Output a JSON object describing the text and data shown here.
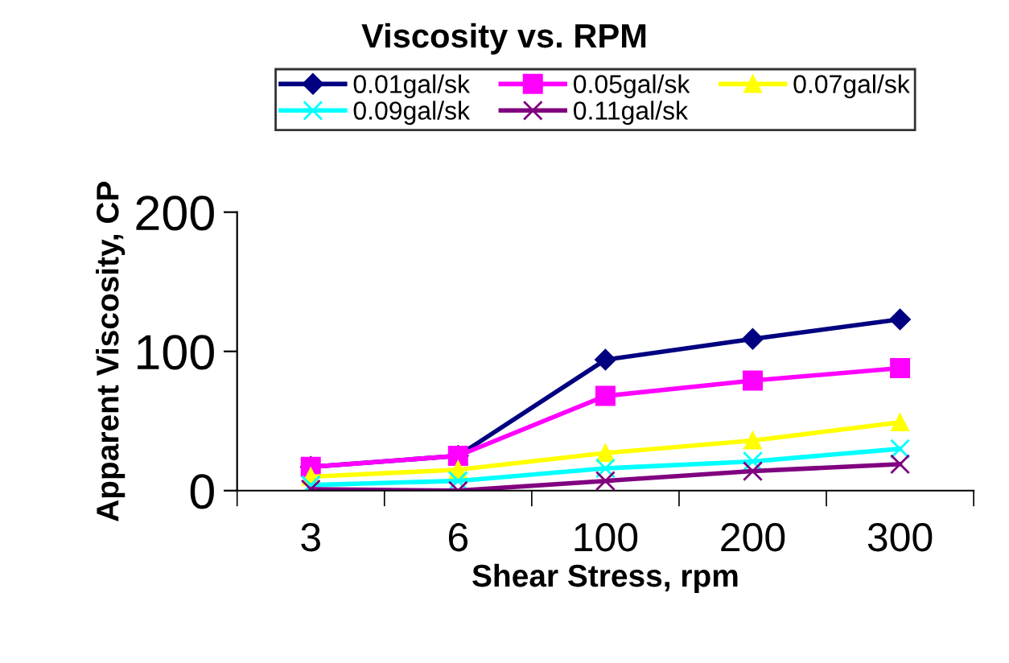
{
  "chart_data": {
    "type": "line",
    "title": "Viscosity vs. RPM",
    "xlabel": "Shear Stress, rpm",
    "ylabel": "Apparent Viscosity, CP",
    "categories": [
      "3",
      "6",
      "100",
      "200",
      "300"
    ],
    "ylim": [
      0,
      200
    ],
    "yticks": [
      0,
      100,
      200
    ],
    "grid": false,
    "legend": "top",
    "series": [
      {
        "name": "0.01gal/sk",
        "color": "#000080",
        "marker": "diamond",
        "values": [
          17,
          25,
          94,
          109,
          123
        ]
      },
      {
        "name": "0.05gal/sk",
        "color": "#ff00ff",
        "marker": "square",
        "values": [
          17,
          25,
          68,
          79,
          88
        ]
      },
      {
        "name": "0.07gal/sk",
        "color": "#ffff00",
        "marker": "triangle",
        "values": [
          10,
          15,
          27,
          36,
          49
        ]
      },
      {
        "name": "0.09gal/sk",
        "color": "#00ffff",
        "marker": "cross",
        "values": [
          4,
          7,
          16,
          21,
          30
        ]
      },
      {
        "name": "0.11gal/sk",
        "color": "#800080",
        "marker": "cross",
        "values": [
          1,
          0,
          7,
          14,
          19
        ]
      }
    ]
  }
}
